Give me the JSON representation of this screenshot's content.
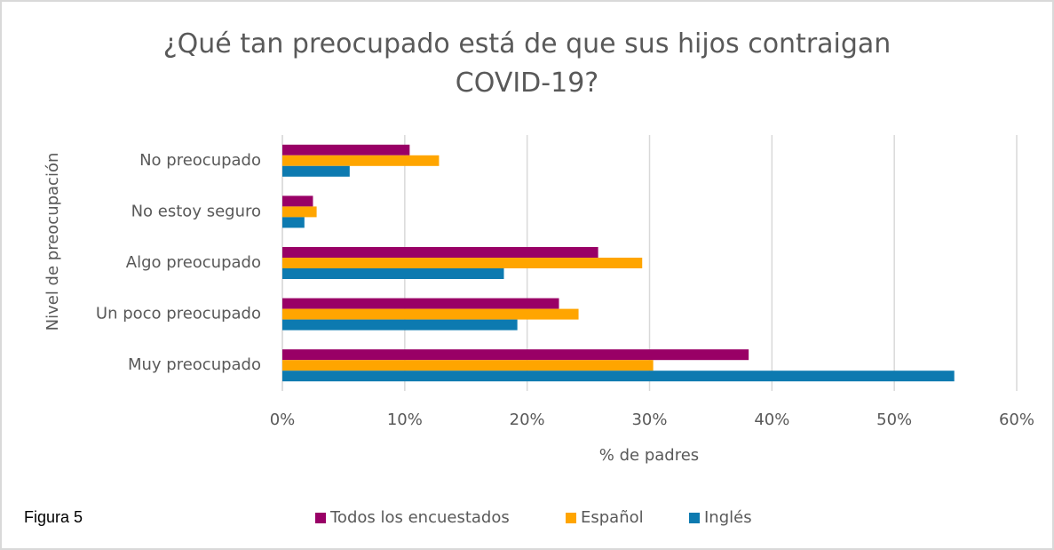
{
  "chart_data": {
    "type": "hbar",
    "title": "¿Qué tan preocupado está de que sus hijos contraigan COVID-19?",
    "x_label": "% de padres",
    "y_label": "Nivel de preocupación",
    "categories": [
      "No preocupado",
      "No estoy seguro",
      "Algo preocupado",
      "Un poco preocupado",
      "Muy preocupado"
    ],
    "series": [
      {
        "name": "Todos los encuestados",
        "color": "#990066",
        "values": [
          10.4,
          2.5,
          25.8,
          22.6,
          38.1
        ]
      },
      {
        "name": "Español",
        "color": "#ffa500",
        "values": [
          12.8,
          2.8,
          29.4,
          24.2,
          30.3
        ]
      },
      {
        "name": "Inglés",
        "color": "#0d7ab0",
        "values": [
          5.5,
          1.8,
          18.1,
          19.2,
          54.9
        ]
      }
    ],
    "xlim": [
      0,
      60
    ],
    "xticks": [
      {
        "value": 0,
        "label": "0%"
      },
      {
        "value": 10,
        "label": "10%"
      },
      {
        "value": 20,
        "label": "20%"
      },
      {
        "value": 30,
        "label": "30%"
      },
      {
        "value": 40,
        "label": "40%"
      },
      {
        "value": 50,
        "label": "50%"
      },
      {
        "value": 60,
        "label": "60%"
      }
    ],
    "grid": true,
    "legend": "bottom"
  },
  "figure_label": "Figura 5"
}
